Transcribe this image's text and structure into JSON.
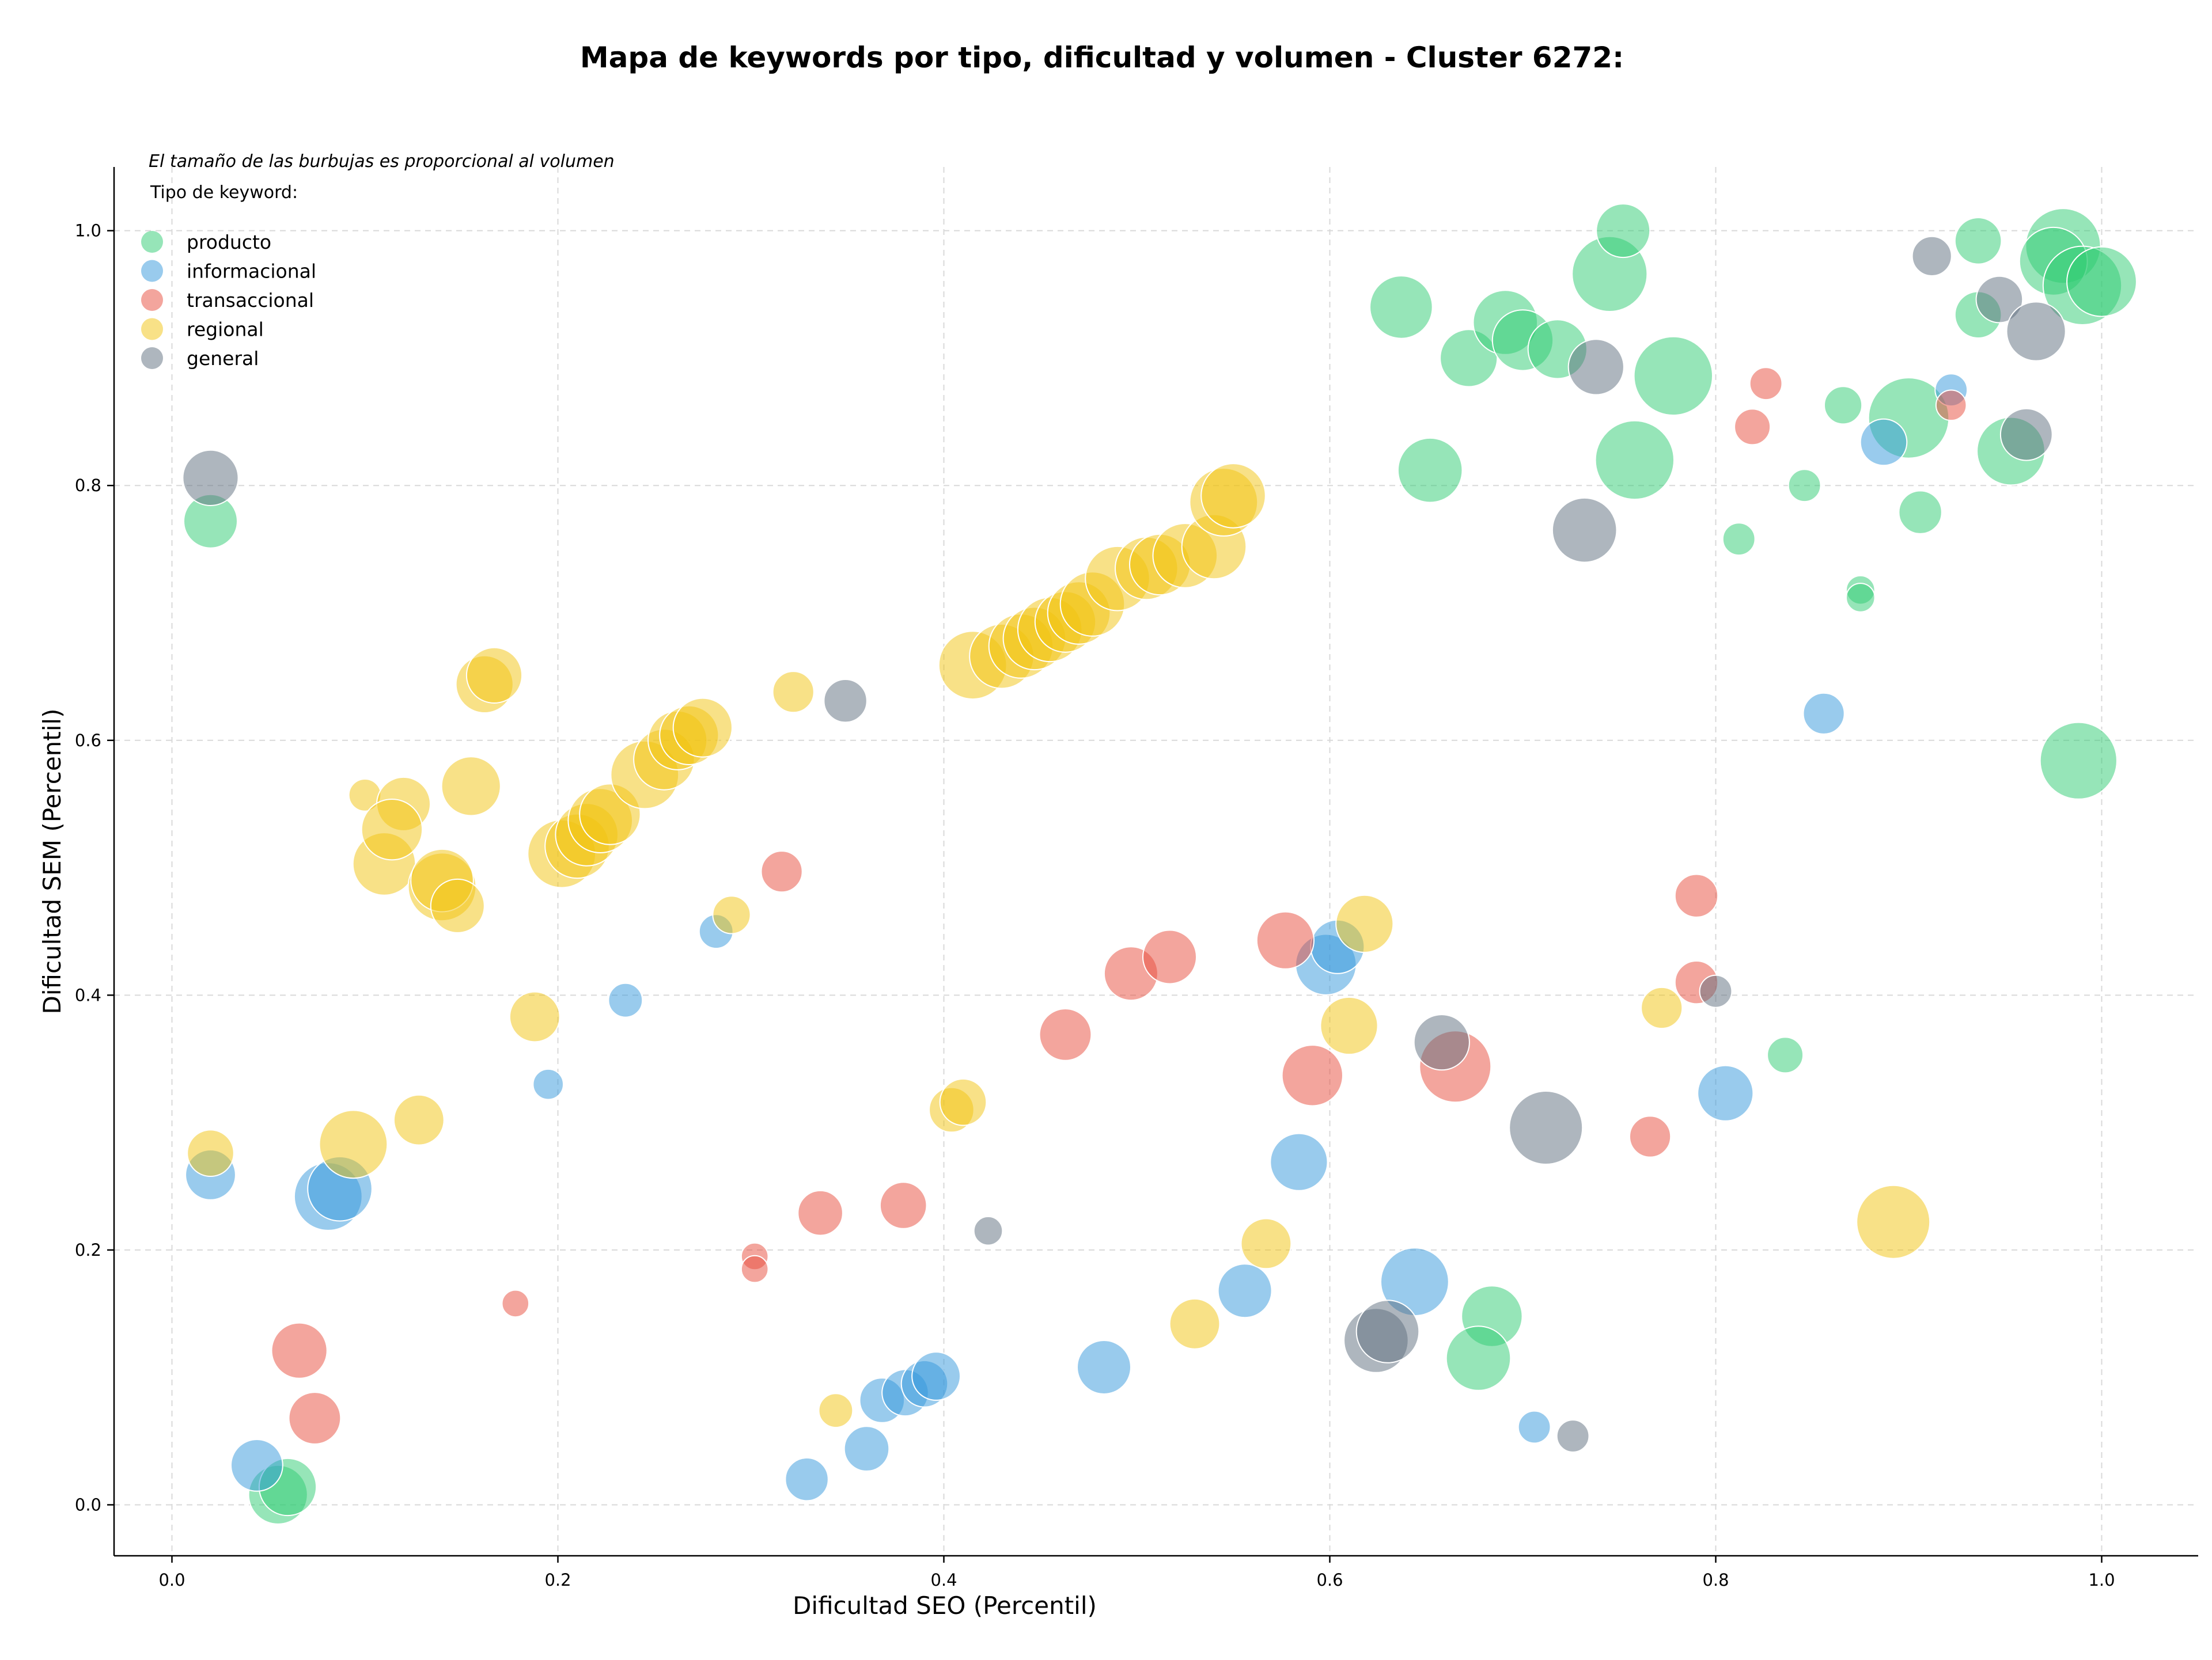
{
  "chart_data": {
    "type": "scatter",
    "title": "Mapa de keywords por tipo, dificultad y volumen - Cluster 6272:",
    "xlabel": "Dificultad SEO (Percentil)",
    "ylabel": "Dificultad SEM (Percentil)",
    "xlim": [
      -0.03,
      1.05
    ],
    "ylim": [
      -0.04,
      1.05
    ],
    "xticks": [
      "0.0",
      "0.2",
      "0.4",
      "0.6",
      "0.8",
      "1.0"
    ],
    "yticks": [
      "0.0",
      "0.2",
      "0.4",
      "0.6",
      "0.8",
      "1.0"
    ],
    "grid": true,
    "legend_position": "upper-left",
    "note": "El tamaño de las burbujas es proporcional al volumen",
    "legend_title": "Tipo de keyword:",
    "size_encoding": "volumen",
    "series": [
      {
        "name": "producto",
        "color": "#2ecc71",
        "points": [
          [
            0.02,
            0.772,
            3
          ],
          [
            0.055,
            0.008,
            3.3
          ],
          [
            0.06,
            0.014,
            3.2
          ],
          [
            0.637,
            0.94,
            3.5
          ],
          [
            0.652,
            0.812,
            3.6
          ],
          [
            0.672,
            0.9,
            3.2
          ],
          [
            0.691,
            0.928,
            3.6
          ],
          [
            0.7,
            0.914,
            3.4
          ],
          [
            0.718,
            0.907,
            3.3
          ],
          [
            0.745,
            0.966,
            4.2
          ],
          [
            0.752,
            1.0,
            3.0
          ],
          [
            0.758,
            0.82,
            4.4
          ],
          [
            0.778,
            0.886,
            4.4
          ],
          [
            0.812,
            0.758,
            1.8
          ],
          [
            0.846,
            0.8,
            1.8
          ],
          [
            0.866,
            0.863,
            2.1
          ],
          [
            0.875,
            0.718,
            1.6
          ],
          [
            0.875,
            0.712,
            1.6
          ],
          [
            0.836,
            0.353,
            2.0
          ],
          [
            0.9,
            0.853,
            4.5
          ],
          [
            0.906,
            0.779,
            2.4
          ],
          [
            0.936,
            0.992,
            2.6
          ],
          [
            0.936,
            0.934,
            2.6
          ],
          [
            0.953,
            0.827,
            3.8
          ],
          [
            0.98,
            0.988,
            4.2
          ],
          [
            0.975,
            0.976,
            3.8
          ],
          [
            0.99,
            0.957,
            4.4
          ],
          [
            1.0,
            0.96,
            3.9
          ],
          [
            0.988,
            0.584,
            4.3
          ],
          [
            0.684,
            0.148,
            3.4
          ],
          [
            0.677,
            0.115,
            3.6
          ]
        ]
      },
      {
        "name": "informacional",
        "color": "#3498db",
        "points": [
          [
            0.02,
            0.259,
            2.8
          ],
          [
            0.044,
            0.031,
            2.9
          ],
          [
            0.081,
            0.242,
            3.8
          ],
          [
            0.087,
            0.248,
            3.6
          ],
          [
            0.195,
            0.33,
            1.7
          ],
          [
            0.235,
            0.396,
            1.9
          ],
          [
            0.282,
            0.45,
            1.9
          ],
          [
            0.329,
            0.02,
            2.4
          ],
          [
            0.36,
            0.044,
            2.5
          ],
          [
            0.368,
            0.082,
            2.5
          ],
          [
            0.38,
            0.088,
            2.6
          ],
          [
            0.39,
            0.095,
            2.6
          ],
          [
            0.396,
            0.101,
            2.7
          ],
          [
            0.483,
            0.108,
            3.0
          ],
          [
            0.556,
            0.168,
            3.0
          ],
          [
            0.584,
            0.269,
            3.2
          ],
          [
            0.598,
            0.424,
            3.4
          ],
          [
            0.604,
            0.438,
            3.0
          ],
          [
            0.644,
            0.175,
            3.8
          ],
          [
            0.706,
            0.061,
            1.8
          ],
          [
            0.805,
            0.323,
            3.1
          ],
          [
            0.856,
            0.621,
            2.3
          ],
          [
            0.887,
            0.834,
            2.6
          ],
          [
            0.922,
            0.875,
            1.8
          ]
        ]
      },
      {
        "name": "transaccional",
        "color": "#e74c3c",
        "points": [
          [
            0.066,
            0.121,
            3.1
          ],
          [
            0.074,
            0.068,
            2.9
          ],
          [
            0.178,
            0.158,
            1.5
          ],
          [
            0.302,
            0.195,
            1.5
          ],
          [
            0.302,
            0.185,
            1.5
          ],
          [
            0.316,
            0.497,
            2.3
          ],
          [
            0.336,
            0.229,
            2.5
          ],
          [
            0.379,
            0.235,
            2.6
          ],
          [
            0.463,
            0.369,
            2.9
          ],
          [
            0.497,
            0.417,
            3.0
          ],
          [
            0.517,
            0.43,
            3.0
          ],
          [
            0.577,
            0.443,
            3.2
          ],
          [
            0.591,
            0.337,
            3.4
          ],
          [
            0.665,
            0.344,
            4.0
          ],
          [
            0.766,
            0.289,
            2.3
          ],
          [
            0.79,
            0.478,
            2.4
          ],
          [
            0.79,
            0.41,
            2.4
          ],
          [
            0.819,
            0.846,
            2.0
          ],
          [
            0.826,
            0.88,
            1.8
          ],
          [
            0.922,
            0.863,
            1.7
          ]
        ]
      },
      {
        "name": "regional",
        "color": "#f1c40f",
        "points": [
          [
            0.02,
            0.276,
            2.6
          ],
          [
            0.094,
            0.283,
            3.8
          ],
          [
            0.1,
            0.557,
            1.8
          ],
          [
            0.11,
            0.503,
            3.5
          ],
          [
            0.12,
            0.55,
            3.0
          ],
          [
            0.114,
            0.53,
            3.4
          ],
          [
            0.128,
            0.302,
            2.8
          ],
          [
            0.14,
            0.485,
            3.8
          ],
          [
            0.14,
            0.49,
            3.5
          ],
          [
            0.148,
            0.47,
            3.0
          ],
          [
            0.155,
            0.564,
            3.3
          ],
          [
            0.162,
            0.644,
            3.2
          ],
          [
            0.167,
            0.651,
            3.1
          ],
          [
            0.188,
            0.383,
            2.8
          ],
          [
            0.202,
            0.511,
            3.8
          ],
          [
            0.21,
            0.517,
            3.6
          ],
          [
            0.215,
            0.526,
            3.5
          ],
          [
            0.222,
            0.537,
            3.6
          ],
          [
            0.227,
            0.542,
            3.4
          ],
          [
            0.245,
            0.573,
            3.8
          ],
          [
            0.255,
            0.585,
            3.4
          ],
          [
            0.262,
            0.6,
            3.3
          ],
          [
            0.268,
            0.604,
            3.3
          ],
          [
            0.275,
            0.61,
            3.3
          ],
          [
            0.29,
            0.463,
            2.1
          ],
          [
            0.322,
            0.638,
            2.3
          ],
          [
            0.344,
            0.074,
            1.9
          ],
          [
            0.404,
            0.31,
            2.5
          ],
          [
            0.41,
            0.316,
            2.6
          ],
          [
            0.415,
            0.659,
            3.8
          ],
          [
            0.43,
            0.666,
            3.6
          ],
          [
            0.44,
            0.674,
            3.6
          ],
          [
            0.447,
            0.68,
            3.5
          ],
          [
            0.455,
            0.687,
            3.6
          ],
          [
            0.463,
            0.693,
            3.4
          ],
          [
            0.47,
            0.7,
            3.5
          ],
          [
            0.477,
            0.707,
            3.6
          ],
          [
            0.49,
            0.727,
            3.6
          ],
          [
            0.505,
            0.735,
            3.5
          ],
          [
            0.512,
            0.738,
            3.4
          ],
          [
            0.525,
            0.745,
            3.6
          ],
          [
            0.54,
            0.752,
            3.6
          ],
          [
            0.545,
            0.787,
            3.8
          ],
          [
            0.55,
            0.792,
            3.6
          ],
          [
            0.53,
            0.142,
            2.8
          ],
          [
            0.567,
            0.205,
            2.8
          ],
          [
            0.61,
            0.376,
            3.2
          ],
          [
            0.618,
            0.456,
            3.2
          ],
          [
            0.772,
            0.39,
            2.3
          ],
          [
            0.892,
            0.222,
            4.1
          ]
        ]
      },
      {
        "name": "general",
        "color": "#5d6d7e",
        "points": [
          [
            0.02,
            0.806,
            3.1
          ],
          [
            0.349,
            0.631,
            2.4
          ],
          [
            0.423,
            0.215,
            1.6
          ],
          [
            0.624,
            0.129,
            3.6
          ],
          [
            0.63,
            0.136,
            3.5
          ],
          [
            0.658,
            0.363,
            3.1
          ],
          [
            0.712,
            0.296,
            4.1
          ],
          [
            0.726,
            0.054,
            1.8
          ],
          [
            0.732,
            0.765,
            3.6
          ],
          [
            0.738,
            0.893,
            3.1
          ],
          [
            0.8,
            0.403,
            1.8
          ],
          [
            0.912,
            0.98,
            2.2
          ],
          [
            0.947,
            0.946,
            2.6
          ],
          [
            0.961,
            0.84,
            2.9
          ],
          [
            0.966,
            0.921,
            3.3
          ]
        ]
      }
    ]
  }
}
